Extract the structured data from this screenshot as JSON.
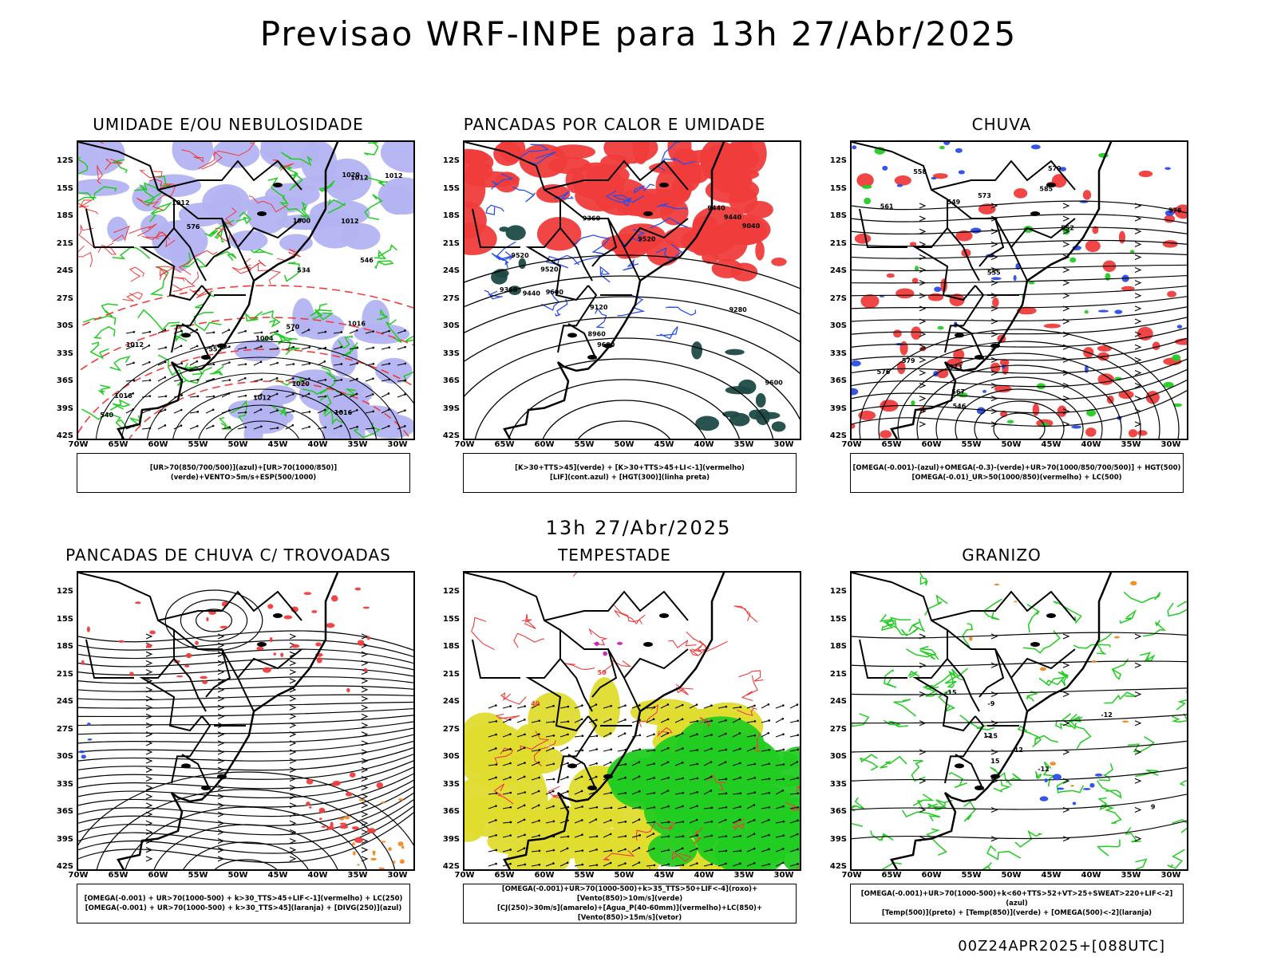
{
  "header": {
    "title": "Previsao WRF-INPE  para 13h 27/Abr/2025"
  },
  "middle_title": "13h 27/Abr/2025",
  "footer": "00Z24APR2025+[088UTC]",
  "axes": {
    "lat_labels": [
      "12S",
      "15S",
      "18S",
      "21S",
      "24S",
      "27S",
      "30S",
      "33S",
      "36S",
      "39S",
      "42S"
    ],
    "lon_labels": [
      "70W",
      "65W",
      "60W",
      "55W",
      "50W",
      "45W",
      "40W",
      "35W",
      "30W"
    ]
  },
  "colors": {
    "red": "#f03c3c",
    "green": "#22cc22",
    "blue": "#2a4ee8",
    "lavender": "#b3b3f2",
    "dark_teal": "#1e4a46",
    "yellow": "#e0dc2e",
    "orange": "#f08a22",
    "purple": "#c020c0",
    "black": "#000000"
  },
  "panels": [
    {
      "title": "UMIDADE E/OU NEBULOSIDADE",
      "legend": [
        "[UR>70(850/700/500)](azul)+[UR>70(1000/850)](verde)+VENTO>5m/s+ESP(500/1000)"
      ],
      "contour_labels": [
        "1012",
        "1012",
        "1012",
        "1016",
        "1012",
        "1012",
        "1020",
        "1016",
        "1020",
        "1012",
        "1004",
        "1000",
        "1016",
        "552",
        "546",
        "540",
        "534",
        "570",
        "576"
      ]
    },
    {
      "title": "PANCADAS POR CALOR E UMIDADE",
      "legend": [
        "[K>30+TTS>45](verde) + [K>30+TTS>45+LI<-1](vermelho)",
        "[LIF](cont.azul) + [HGT(300)](linha preta)"
      ],
      "contour_labels": [
        "9600",
        "9520",
        "9600",
        "9520",
        "9440",
        "9360",
        "9520",
        "9440",
        "9360",
        "9280",
        "9120",
        "9040",
        "8960",
        "9600",
        "9440"
      ]
    },
    {
      "title": "CHUVA",
      "legend": [
        "[OMEGA(-0.001)-(azul)+OMEGA(-0.3)-(verde)+UR>70(1000/850/700/500)] + HGT(500)",
        "[OMEGA(-0.01)_UR>50(1000/850)(vermelho) + LC(500)"
      ],
      "contour_labels": [
        "585",
        "579",
        "576",
        "573",
        "567",
        "561",
        "558",
        "555",
        "552",
        "549",
        "546",
        "579",
        "576",
        "573"
      ]
    },
    {
      "title": "PANCADAS DE CHUVA C/ TROVOADAS",
      "legend": [
        "[OMEGA(-0.001) + UR>70(1000-500) + k>30_TTS>45+LIF<-1](vermelho) + LC(250)",
        "[OMEGA(-0.001) + UR>70(1000-500) + k>30_TTS>45](laranja) + [DIVG(250)](azul)"
      ],
      "contour_labels": []
    },
    {
      "title": "TEMPESTADE",
      "legend": [
        "[OMEGA(-0.001)+UR>70(1000-500)+k>35_TTS>50+LIF<-4](roxo)+[Vento(850)>10m/s](verde)",
        "[CJ(250)>30m/s](amarelo)+[Agua_P(40-60mm)](vermelho)+LC(850)+[Vento(850)>15m/s](vetor)"
      ],
      "contour_labels": [
        "50",
        "40"
      ]
    },
    {
      "title": "GRANIZO",
      "legend": [
        "[OMEGA(-0.001)+UR>70(1000-500)+k<60+TTS>52+VT>25+SWEAT>220+LIF<-2](azul)",
        "[Temp(500)](preto) + [Temp(850)](verde) + [OMEGA(500)<-2](laranja)"
      ],
      "contour_labels": [
        "-12",
        "-12",
        "-9",
        "-15",
        "-15",
        "-12",
        "12",
        "15",
        "9"
      ]
    }
  ]
}
